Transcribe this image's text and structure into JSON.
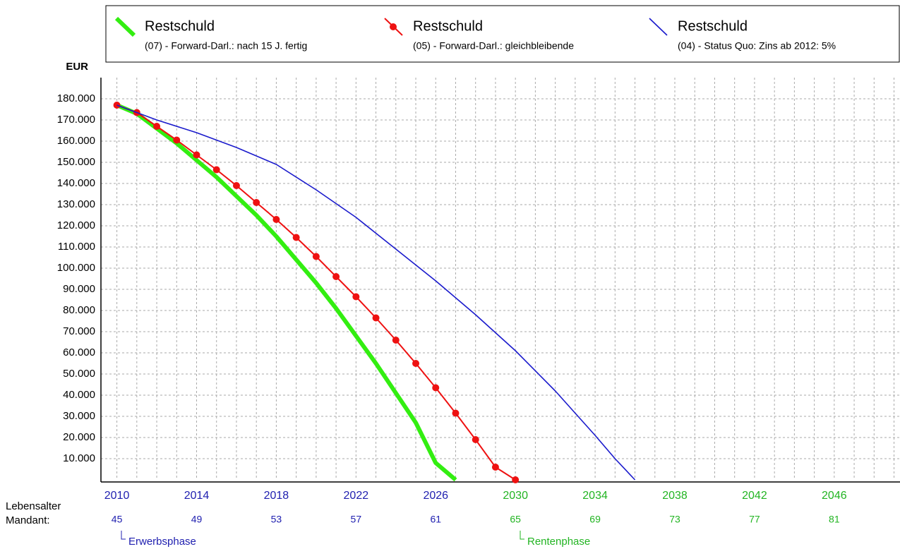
{
  "chart_data": {
    "type": "line",
    "y_unit": "EUR",
    "xlim": [
      2009.2,
      2049.3
    ],
    "xticks": [
      2010,
      2014,
      2018,
      2022,
      2026,
      2030,
      2034,
      2038,
      2042,
      2046
    ],
    "xtick_colors": [
      "#2020b0",
      "#2020b0",
      "#2020b0",
      "#2020b0",
      "#2020b0",
      "#22b422",
      "#22b422",
      "#22b422",
      "#22b422",
      "#22b422"
    ],
    "xgrid": [
      2010,
      2011,
      2012,
      2013,
      2014,
      2015,
      2016,
      2017,
      2018,
      2019,
      2020,
      2021,
      2022,
      2023,
      2024,
      2025,
      2026,
      2027,
      2028,
      2029,
      2030,
      2031,
      2032,
      2033,
      2034,
      2035,
      2036,
      2037,
      2038,
      2039,
      2040,
      2041,
      2042,
      2043,
      2044,
      2045,
      2046,
      2047,
      2048,
      2049
    ],
    "ylim": [
      0,
      190000
    ],
    "yticks": [
      {
        "value": 10000,
        "label": "10.000"
      },
      {
        "value": 20000,
        "label": "20.000"
      },
      {
        "value": 30000,
        "label": "30.000"
      },
      {
        "value": 40000,
        "label": "40.000"
      },
      {
        "value": 50000,
        "label": "50.000"
      },
      {
        "value": 60000,
        "label": "60.000"
      },
      {
        "value": 70000,
        "label": "70.000"
      },
      {
        "value": 80000,
        "label": "80.000"
      },
      {
        "value": 90000,
        "label": "90.000"
      },
      {
        "value": 100000,
        "label": "100.000"
      },
      {
        "value": 110000,
        "label": "110.000"
      },
      {
        "value": 120000,
        "label": "120.000"
      },
      {
        "value": 130000,
        "label": "130.000"
      },
      {
        "value": 140000,
        "label": "140.000"
      },
      {
        "value": 150000,
        "label": "150.000"
      },
      {
        "value": 160000,
        "label": "160.000"
      },
      {
        "value": 170000,
        "label": "170.000"
      },
      {
        "value": 180000,
        "label": "180.000"
      }
    ],
    "grid": true,
    "age_label": [
      "Lebensalter",
      "Mandant:"
    ],
    "ages": [
      45,
      49,
      53,
      57,
      61,
      65,
      69,
      73,
      77,
      81
    ],
    "annotations": [
      "Erwerbsphase",
      "Rentenphase"
    ],
    "series": [
      {
        "name": "Restschuld",
        "description": "(07) - Forward-Darl.: nach 15 J. fertig",
        "color": "#33ee11",
        "width": 6,
        "markers": false,
        "x": [
          2010,
          2011,
          2012,
          2013,
          2014,
          2015,
          2016,
          2017,
          2018,
          2019,
          2020,
          2021,
          2022,
          2023,
          2024,
          2025,
          2026,
          2027
        ],
        "values": [
          177000,
          173000,
          166000,
          159000,
          151000,
          143000,
          134000,
          125000,
          115000,
          104000,
          93000,
          81000,
          68000,
          55000,
          41000,
          27000,
          8000,
          0
        ]
      },
      {
        "name": "Restschuld",
        "description": "(05) - Forward-Darl.: gleichbleibende",
        "color": "#ee1111",
        "width": 2,
        "markers": true,
        "x": [
          2010,
          2011,
          2012,
          2013,
          2014,
          2015,
          2016,
          2017,
          2018,
          2019,
          2020,
          2021,
          2022,
          2023,
          2024,
          2025,
          2026,
          2027,
          2028,
          2029,
          2030
        ],
        "values": [
          177000,
          173500,
          167000,
          160500,
          153500,
          146500,
          139000,
          131000,
          123000,
          114500,
          105500,
          96000,
          86500,
          76500,
          66000,
          55000,
          43500,
          31500,
          19000,
          6000,
          0
        ]
      },
      {
        "name": "Restschuld",
        "description": "(04) - Status Quo: Zins ab 2012: 5%",
        "color": "#1a1acc",
        "width": 1.6,
        "markers": false,
        "x": [
          2010,
          2012,
          2014,
          2016,
          2018,
          2020,
          2022,
          2024,
          2026,
          2028,
          2030,
          2032,
          2034,
          2035,
          2036
        ],
        "values": [
          177000,
          170000,
          164000,
          157000,
          149000,
          137000,
          124000,
          109000,
          94000,
          78000,
          61000,
          42000,
          21000,
          10000,
          0
        ]
      }
    ]
  }
}
